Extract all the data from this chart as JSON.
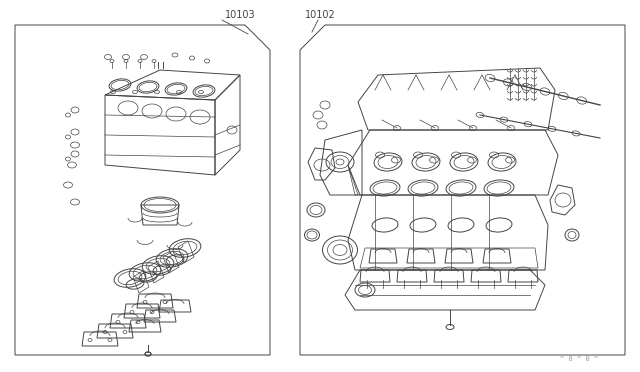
{
  "bg_color": "#ffffff",
  "line_color": "#444444",
  "label_color": "#333333",
  "left_part_number": "10103",
  "right_part_number": "10102",
  "footer_text": "^ 0 ^ 0 ^",
  "lw_main": 0.7,
  "lw_thin": 0.5,
  "lw_thick": 1.0
}
